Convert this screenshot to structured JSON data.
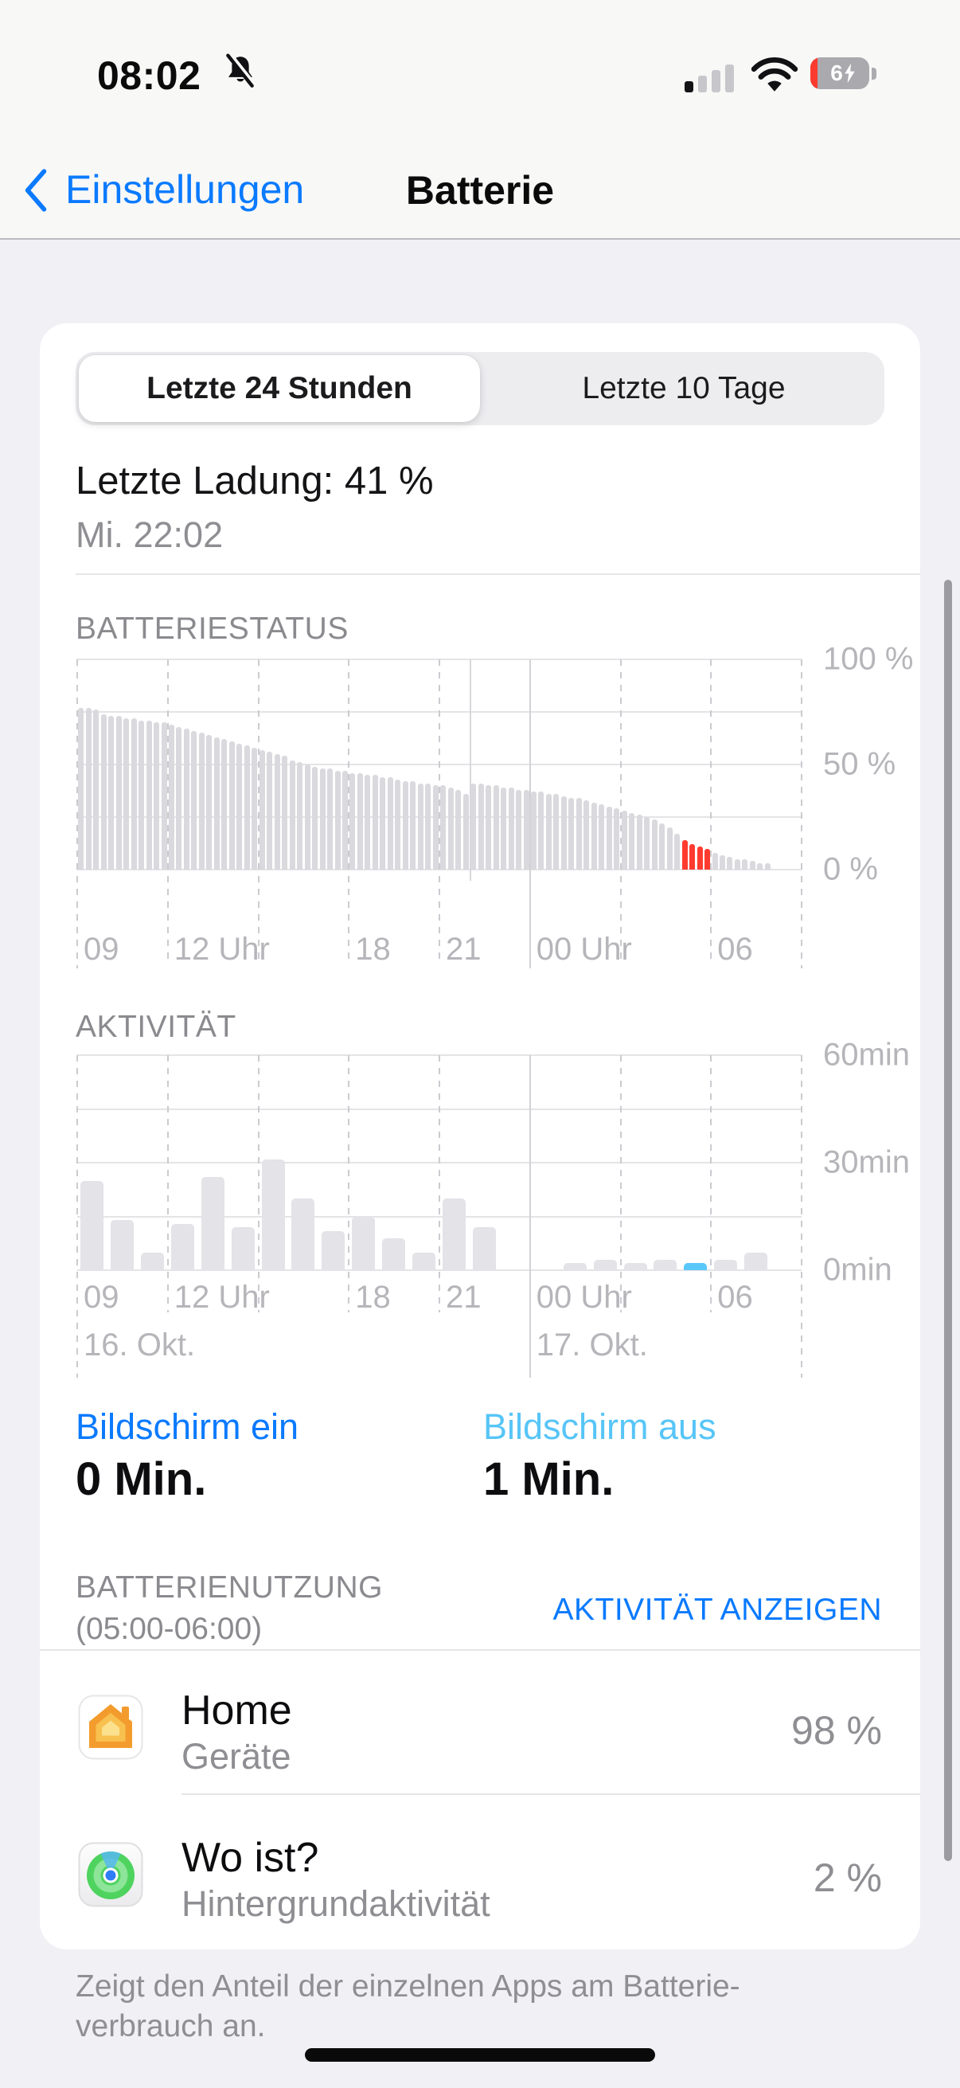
{
  "status_bar": {
    "time": "08:02",
    "battery_percent": "6",
    "battery_charging": true,
    "signal_bars_filled": 1,
    "signal_bars_total": 4
  },
  "nav": {
    "back_label": "Einstellungen",
    "title": "Batterie"
  },
  "segmented": {
    "options": [
      "Letzte 24 Stunden",
      "Letzte 10 Tage"
    ],
    "selected": "Letzte 24 Stunden"
  },
  "last_charge": {
    "title": "Letzte Ladung: 41 %",
    "subtitle": "Mi. 22:02"
  },
  "chart_data": [
    {
      "id": "battery-level",
      "type": "bar",
      "title": "BATTERIESTATUS",
      "interval_minutes": 15,
      "x_start": "09:00 16. Okt.",
      "x_end": "08:00 17. Okt.",
      "ylim": [
        0,
        100
      ],
      "grid": true,
      "gridline_values": [
        100,
        75,
        50,
        25,
        0
      ],
      "y_ticks": [
        {
          "label": "100 %",
          "value": 100
        },
        {
          "label": "50 %",
          "value": 50
        },
        {
          "label": "0 %",
          "value": 0
        }
      ],
      "x_ticks": [
        {
          "label": "09",
          "hour": 0
        },
        {
          "label": "12 Uhr",
          "hour": 3
        },
        {
          "label": "18",
          "hour": 9
        },
        {
          "label": "21",
          "hour": 12
        },
        {
          "label": "00 Uhr",
          "hour": 15
        },
        {
          "label": "06",
          "hour": 21
        }
      ],
      "midnight_hour": 15,
      "charge_marker_hour": 13.03,
      "bar_color": "#d9d9de",
      "highlight": {
        "from_index": 80,
        "to_index": 83,
        "color": "#ff3b30",
        "meaning": "ausgewählte Stunde 05:00-06:00"
      },
      "values": [
        77,
        77,
        76,
        74,
        73,
        73,
        72,
        72,
        71,
        71,
        70,
        70,
        69,
        68,
        67,
        66,
        65,
        64,
        63,
        62,
        61,
        60,
        59,
        58,
        57,
        56,
        55,
        54,
        52,
        51,
        50,
        49,
        48,
        48,
        47,
        47,
        46,
        46,
        45,
        45,
        44,
        44,
        43,
        42,
        42,
        41,
        41,
        40,
        40,
        39,
        38,
        36,
        41,
        41,
        40,
        40,
        39,
        39,
        38,
        38,
        37,
        37,
        36,
        36,
        35,
        34,
        34,
        33,
        32,
        31,
        30,
        29,
        28,
        27,
        26,
        25,
        24,
        22,
        20,
        17,
        14,
        12,
        11,
        10,
        8,
        7,
        6,
        5,
        5,
        4,
        3,
        3
      ]
    },
    {
      "id": "activity",
      "type": "bar",
      "title": "AKTIVITÄT",
      "interval_minutes": 60,
      "ylim": [
        0,
        60
      ],
      "grid": true,
      "gridline_values": [
        60,
        45,
        30,
        15,
        0
      ],
      "y_ticks": [
        {
          "label": "60min",
          "value": 60
        },
        {
          "label": "30min",
          "value": 30
        },
        {
          "label": "0min",
          "value": 0
        }
      ],
      "x_ticks": [
        {
          "label": "09",
          "hour": 0
        },
        {
          "label": "12 Uhr",
          "hour": 3
        },
        {
          "label": "18",
          "hour": 9
        },
        {
          "label": "21",
          "hour": 12
        },
        {
          "label": "00 Uhr",
          "hour": 15
        },
        {
          "label": "06",
          "hour": 21
        }
      ],
      "date_labels": [
        {
          "label": "16. Okt.",
          "hour": 0
        },
        {
          "label": "17. Okt.",
          "hour": 15
        }
      ],
      "midnight_hour": 15,
      "bar_color": "#e3e3e8",
      "highlight": {
        "index": 20,
        "color": "#5ac8fa",
        "meaning": "ausgewählte Stunde 05:00-06:00 (Bildschirm aus)"
      },
      "values": [
        25,
        14,
        5,
        13,
        26,
        12,
        31,
        20,
        11,
        15,
        9,
        5,
        20,
        12,
        0,
        0,
        2,
        3,
        2,
        3,
        2,
        3,
        5
      ]
    }
  ],
  "screen_time": {
    "on_label": "Bildschirm ein",
    "on_value": "0 Min.",
    "off_label": "Bildschirm aus",
    "off_value": "1 Min."
  },
  "battery_usage": {
    "header_line1": "BATTERIENUTZUNG",
    "header_line2": "(05:00-06:00)",
    "action": "AKTIVITÄT ANZEIGEN",
    "apps": [
      {
        "name": "Home",
        "subtitle": "Geräte",
        "percent": "98 %",
        "icon": "home-app-icon"
      },
      {
        "name": "Wo ist?",
        "subtitle": "Hintergrundaktivität",
        "percent": "2 %",
        "icon": "findmy-app-icon"
      }
    ]
  },
  "footer": {
    "line1": "Zeigt den Anteil der einzelnen Apps am Batterie-",
    "line2": "verbrauch an."
  },
  "colors": {
    "accent_blue": "#007aff",
    "screen_off_blue": "#5ac8fa",
    "selected_red": "#ff3b30",
    "bar_gray": "#d9d9de",
    "activity_bar_gray": "#e3e3e8",
    "axis_label_gray": "#b5b5ba",
    "header_gray": "#8a8a8f",
    "card_bg": "#ffffff",
    "page_bg": "#f0f0f5"
  }
}
